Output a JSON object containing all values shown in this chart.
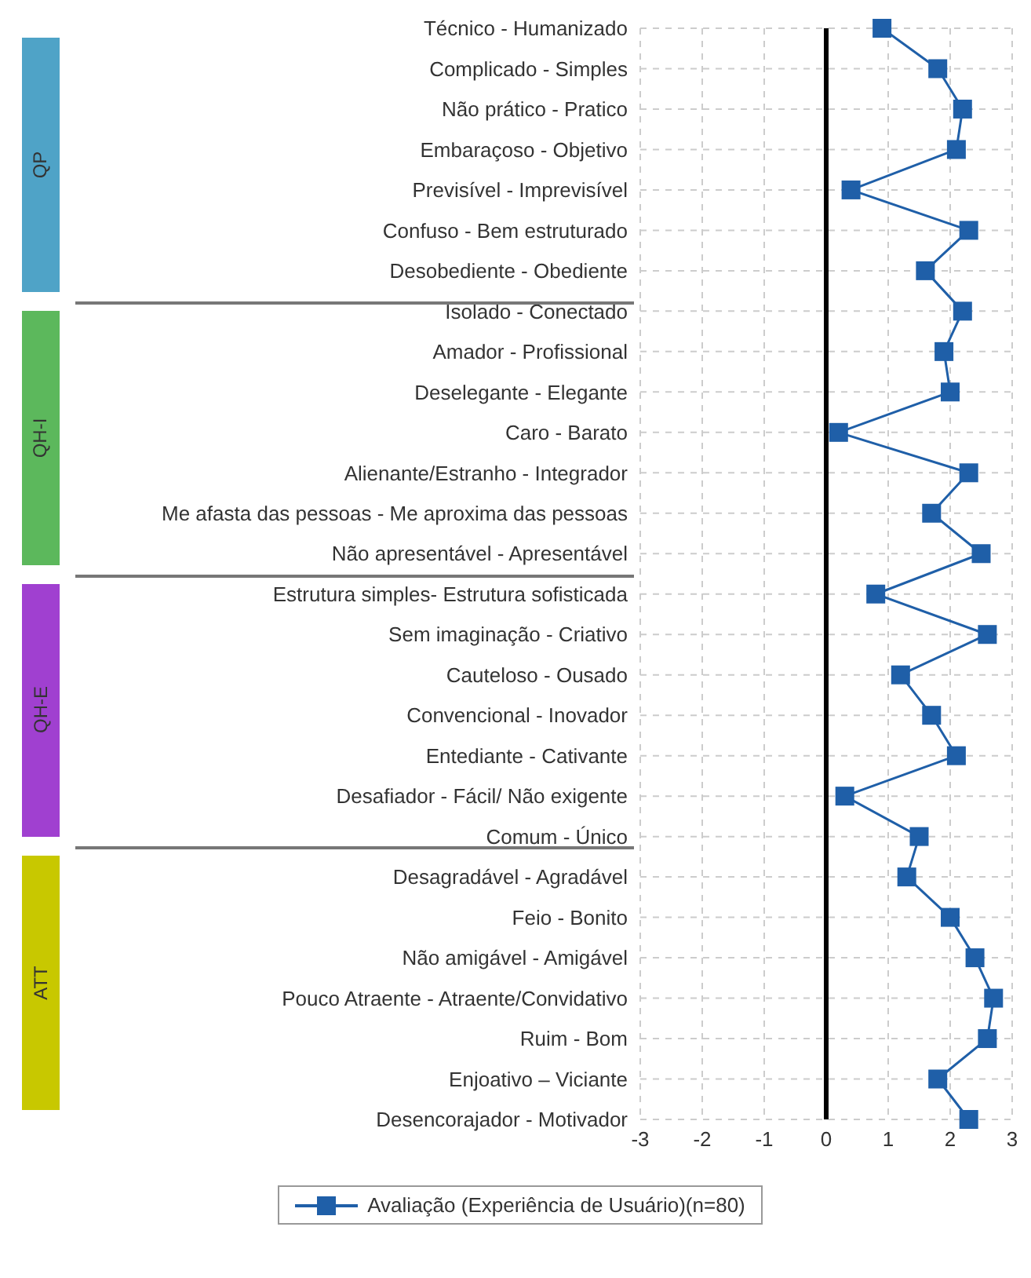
{
  "chart_data": {
    "type": "line",
    "orientation": "horizontal",
    "categories": [
      "Técnico - Humanizado",
      "Complicado - Simples",
      "Não prático - Pratico",
      "Embaraçoso - Objetivo",
      "Previsível - Imprevisível",
      "Confuso - Bem estruturado",
      "Desobediente - Obediente",
      "Isolado - Conectado",
      "Amador - Profissional",
      "Deselegante - Elegante",
      "Caro - Barato",
      "Alienante/Estranho - Integrador",
      "Me afasta das pessoas - Me aproxima das pessoas",
      "Não apresentável - Apresentável",
      "Estrutura simples- Estrutura sofisticada",
      "Sem imaginação - Criativo",
      "Cauteloso - Ousado",
      "Convencional - Inovador",
      "Entediante - Cativante",
      "Desafiador - Fácil/ Não exigente",
      "Comum - Único",
      "Desagradável - Agradável",
      "Feio - Bonito",
      "Não amigável - Amigável",
      "Pouco Atraente - Atraente/Convidativo",
      "Ruim - Bom",
      "Enjoativo – Viciante",
      "Desencorajador - Motivador"
    ],
    "series": [
      {
        "name": "Avaliação (Experiência de Usuário)(n=80)",
        "color": "#1f5fa8",
        "values": [
          0.9,
          1.8,
          2.2,
          2.1,
          0.4,
          2.3,
          1.6,
          2.2,
          1.9,
          2.0,
          0.2,
          2.3,
          1.7,
          2.5,
          0.8,
          2.6,
          1.2,
          1.7,
          2.1,
          0.3,
          1.5,
          1.3,
          2.0,
          2.4,
          2.7,
          2.6,
          1.8,
          2.3
        ]
      }
    ],
    "xlim": [
      -3,
      3
    ],
    "xticks": [
      -3,
      -2,
      -1,
      0,
      1,
      2,
      3
    ],
    "ref_lines": [
      {
        "axis": "x",
        "value": 0,
        "color": "#000000"
      }
    ],
    "annotations": [
      "QP",
      "QH-I",
      "QH-E",
      "ATT"
    ],
    "grid": true,
    "legend": "bottom",
    "marker": "square"
  }
}
